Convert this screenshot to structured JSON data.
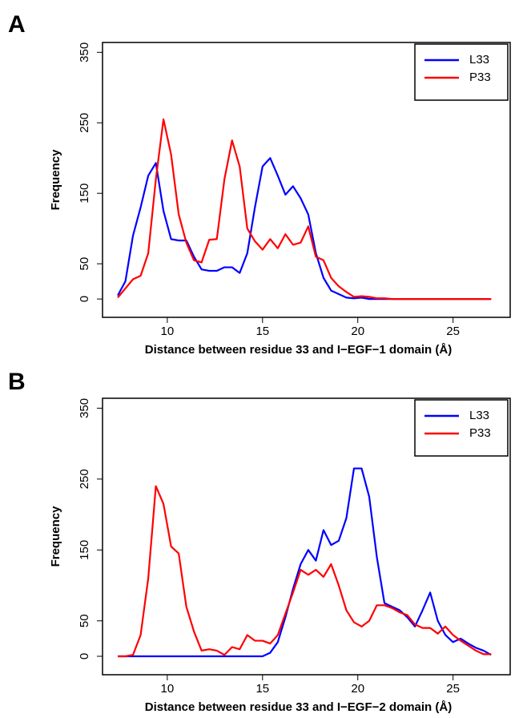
{
  "chart_data": [
    {
      "type": "line",
      "title": "A",
      "x_label": "Distance between residue 33 and I−EGF−1 domain (Å)",
      "y_label": "Frequency",
      "x": [
        7.4,
        7.8,
        8.2,
        8.6,
        9.0,
        9.4,
        9.8,
        10.2,
        10.6,
        11.0,
        11.4,
        11.8,
        12.2,
        12.6,
        13.0,
        13.4,
        13.8,
        14.2,
        14.6,
        15.0,
        15.4,
        15.8,
        16.2,
        16.6,
        17.0,
        17.4,
        17.8,
        18.2,
        18.6,
        19.0,
        19.4,
        19.8,
        20.2,
        20.6,
        21.0,
        21.4,
        21.8,
        22.2,
        22.6,
        23.0,
        23.4,
        23.8,
        24.2,
        24.6,
        25.0,
        25.4,
        25.8,
        26.2,
        26.6,
        27.0
      ],
      "series": [
        {
          "name": "L33",
          "color": "#0000ff",
          "values": [
            5,
            25,
            90,
            130,
            175,
            193,
            125,
            85,
            83,
            83,
            60,
            42,
            40,
            40,
            45,
            45,
            37,
            65,
            130,
            188,
            200,
            175,
            148,
            160,
            143,
            120,
            65,
            30,
            12,
            7,
            2,
            1,
            2,
            0,
            0,
            0,
            0,
            0,
            0,
            0,
            0,
            0,
            0,
            0,
            0,
            0,
            0,
            0,
            0,
            0
          ]
        },
        {
          "name": "P33",
          "color": "#ff0000",
          "values": [
            2,
            15,
            28,
            33,
            65,
            170,
            255,
            205,
            120,
            80,
            55,
            52,
            84,
            85,
            170,
            225,
            188,
            100,
            82,
            70,
            85,
            72,
            92,
            77,
            80,
            103,
            60,
            55,
            30,
            18,
            10,
            3,
            4,
            3,
            1,
            1,
            0,
            0,
            0,
            0,
            0,
            0,
            0,
            0,
            0,
            0,
            0,
            0,
            0,
            0
          ]
        }
      ],
      "xlim": [
        6.6,
        28
      ],
      "xticks": [
        10,
        15,
        20,
        25
      ],
      "ylim": [
        -26,
        364
      ],
      "yticks": [
        0,
        50,
        150,
        250,
        350
      ],
      "legend": "top-right",
      "grid": false
    },
    {
      "type": "line",
      "title": "B",
      "x_label": "Distance between residue 33 and I−EGF−2 domain (Å)",
      "y_label": "Frequency",
      "x": [
        7.4,
        7.8,
        8.2,
        8.6,
        9.0,
        9.4,
        9.8,
        10.2,
        10.6,
        11.0,
        11.4,
        11.8,
        12.2,
        12.6,
        13.0,
        13.4,
        13.8,
        14.2,
        14.6,
        15.0,
        15.4,
        15.8,
        16.2,
        16.6,
        17.0,
        17.4,
        17.8,
        18.2,
        18.6,
        19.0,
        19.4,
        19.8,
        20.2,
        20.6,
        21.0,
        21.4,
        21.8,
        22.2,
        22.6,
        23.0,
        23.4,
        23.8,
        24.2,
        24.6,
        25.0,
        25.4,
        25.8,
        26.2,
        26.6,
        27.0
      ],
      "series": [
        {
          "name": "L33",
          "color": "#0000ff",
          "values": [
            0,
            0,
            0,
            0,
            0,
            0,
            0,
            0,
            0,
            0,
            0,
            0,
            0,
            0,
            0,
            0,
            0,
            0,
            0,
            0,
            5,
            20,
            55,
            95,
            130,
            150,
            135,
            178,
            157,
            163,
            195,
            265,
            265,
            225,
            140,
            75,
            70,
            65,
            55,
            42,
            65,
            90,
            50,
            30,
            20,
            25,
            18,
            12,
            8,
            2
          ]
        },
        {
          "name": "P33",
          "color": "#ff0000",
          "values": [
            0,
            0,
            2,
            30,
            110,
            240,
            215,
            155,
            145,
            70,
            35,
            8,
            10,
            8,
            2,
            13,
            10,
            30,
            22,
            22,
            18,
            30,
            60,
            90,
            122,
            115,
            122,
            112,
            130,
            100,
            65,
            48,
            42,
            50,
            72,
            72,
            68,
            62,
            58,
            45,
            40,
            40,
            32,
            42,
            30,
            22,
            15,
            8,
            3,
            3
          ]
        }
      ],
      "xlim": [
        6.6,
        28
      ],
      "xticks": [
        10,
        15,
        20,
        25
      ],
      "ylim": [
        -26,
        364
      ],
      "yticks": [
        0,
        50,
        150,
        250,
        350
      ],
      "legend": "top-right",
      "grid": false
    }
  ]
}
